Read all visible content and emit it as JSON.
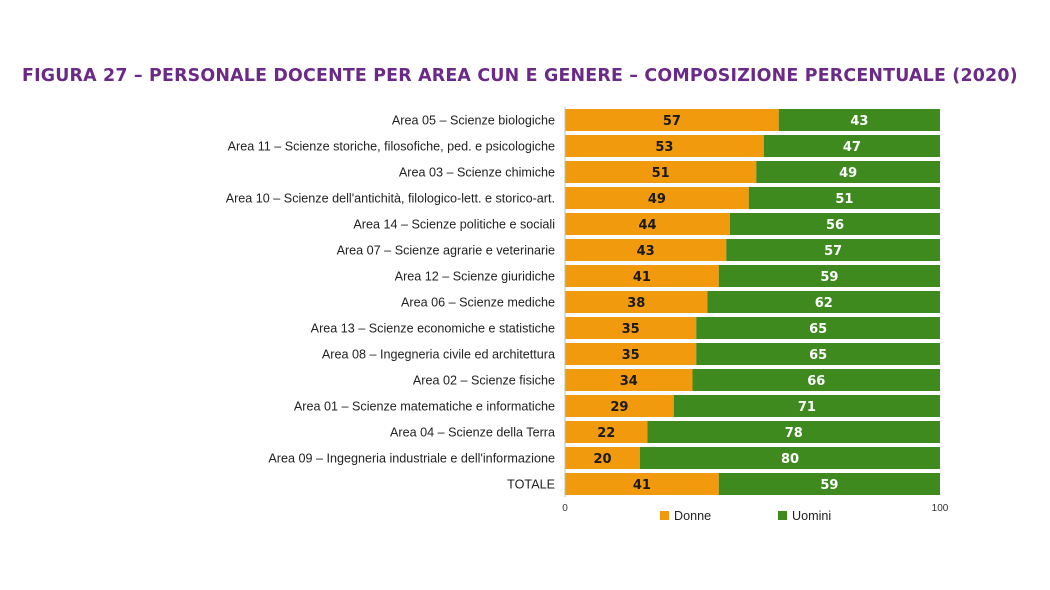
{
  "title": "FIGURA 27 – PERSONALE DOCENTE PER AREA CUN E GENERE – COMPOSIZIONE PERCENTUALE (2020)",
  "colors": {
    "donne": "#f29a0e",
    "uomini": "#3f8a1e",
    "title": "#6b2a87"
  },
  "chart_data": {
    "type": "bar",
    "orientation": "horizontal",
    "stacked": true,
    "title": "FIGURA 27 – PERSONALE DOCENTE PER AREA CUN E GENERE – COMPOSIZIONE PERCENTUALE (2020)",
    "categories": [
      "Area 05 – Scienze biologiche",
      "Area 11 – Scienze storiche, filosofiche, ped. e psicologiche",
      "Area 03 – Scienze chimiche",
      "Area 10 – Scienze dell'antichità, filologico-lett. e storico-art.",
      "Area 14 – Scienze politiche e sociali",
      "Area 07 – Scienze agrarie e veterinarie",
      "Area 12 – Scienze giuridiche",
      "Area 06 – Scienze mediche",
      "Area 13 – Scienze economiche e statistiche",
      "Area 08 – Ingegneria civile ed architettura",
      "Area 02 – Scienze fisiche",
      "Area 01 – Scienze matematiche e informatiche",
      "Area 04 – Scienze della Terra",
      "Area 09 – Ingegneria industriale e dell'informazione",
      "TOTALE"
    ],
    "series": [
      {
        "name": "Donne",
        "color": "#f29a0e",
        "values": [
          57,
          53,
          51,
          49,
          44,
          43,
          41,
          38,
          35,
          35,
          34,
          29,
          22,
          20,
          41
        ]
      },
      {
        "name": "Uomini",
        "color": "#3f8a1e",
        "values": [
          43,
          47,
          49,
          51,
          56,
          57,
          59,
          62,
          65,
          65,
          66,
          71,
          78,
          80,
          59
        ]
      }
    ],
    "xlim": [
      0,
      100
    ],
    "xticks": [
      "0",
      "100"
    ],
    "legend": {
      "position": "bottom",
      "entries": [
        "Donne",
        "Uomini"
      ]
    },
    "grid": false
  }
}
